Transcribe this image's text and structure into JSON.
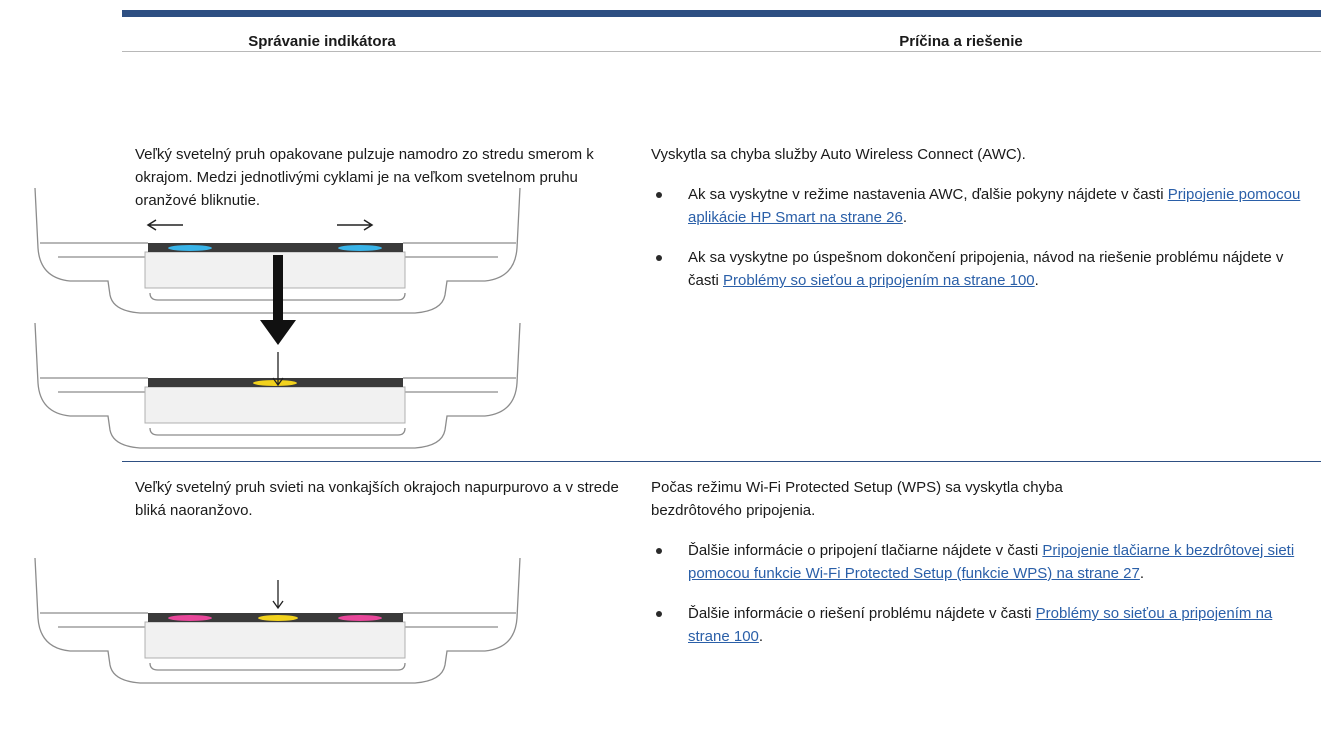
{
  "table": {
    "headers": [
      "Správanie indikátora",
      "Príčina a riešenie"
    ],
    "rows": [
      {
        "behavior": "Veľký svetelný pruh opakovane pulzuje namodro zo stredu smerom k okrajom. Medzi jednotlivými cyklami je na veľkom svetelnom pruhu oranžové bliknutie.",
        "cause": {
          "text": "Vyskytla sa chyba služby Auto Wireless Connect (AWC).",
          "bullets": [
            {
              "text": "Ak sa vyskytne v režime nastavenia AWC, ďalšie pokyny nájdete v časti",
              "link": "Pripojenie pomocou aplikácie HP Smart na strane 26",
              "end": "."
            },
            {
              "text": "Ak sa vyskytne po úspešnom dokončení pripojenia, návod na riešenie problému nájdete v časti",
              "link": "Problémy so sieťou a pripojením na strane 100",
              "end": "."
            }
          ]
        }
      },
      {
        "behavior": "Veľký svetelný pruh svieti na vonkajších okrajoch napurpurovo a v strede bliká naoranžovo.",
        "cause": {
          "text": "Počas režimu Wi-Fi Protected Setup (WPS) sa vyskytla chyba bezdrôtového pripojenia.",
          "bullets": [
            {
              "text": "Ďalšie informácie o pripojení tlačiarne nájdete v časti",
              "link": "Pripojenie tlačiarne k bezdrôtovej sieti pomocou funkcie Wi-Fi Protected Setup (funkcie WPS) na strane 27",
              "end": "."
            },
            {
              "text": "Ďalšie informácie o riešení problému nájdete v časti",
              "link": "Problémy so sieťou a pripojením na strane 100",
              "end": "."
            }
          ]
        }
      }
    ]
  }
}
